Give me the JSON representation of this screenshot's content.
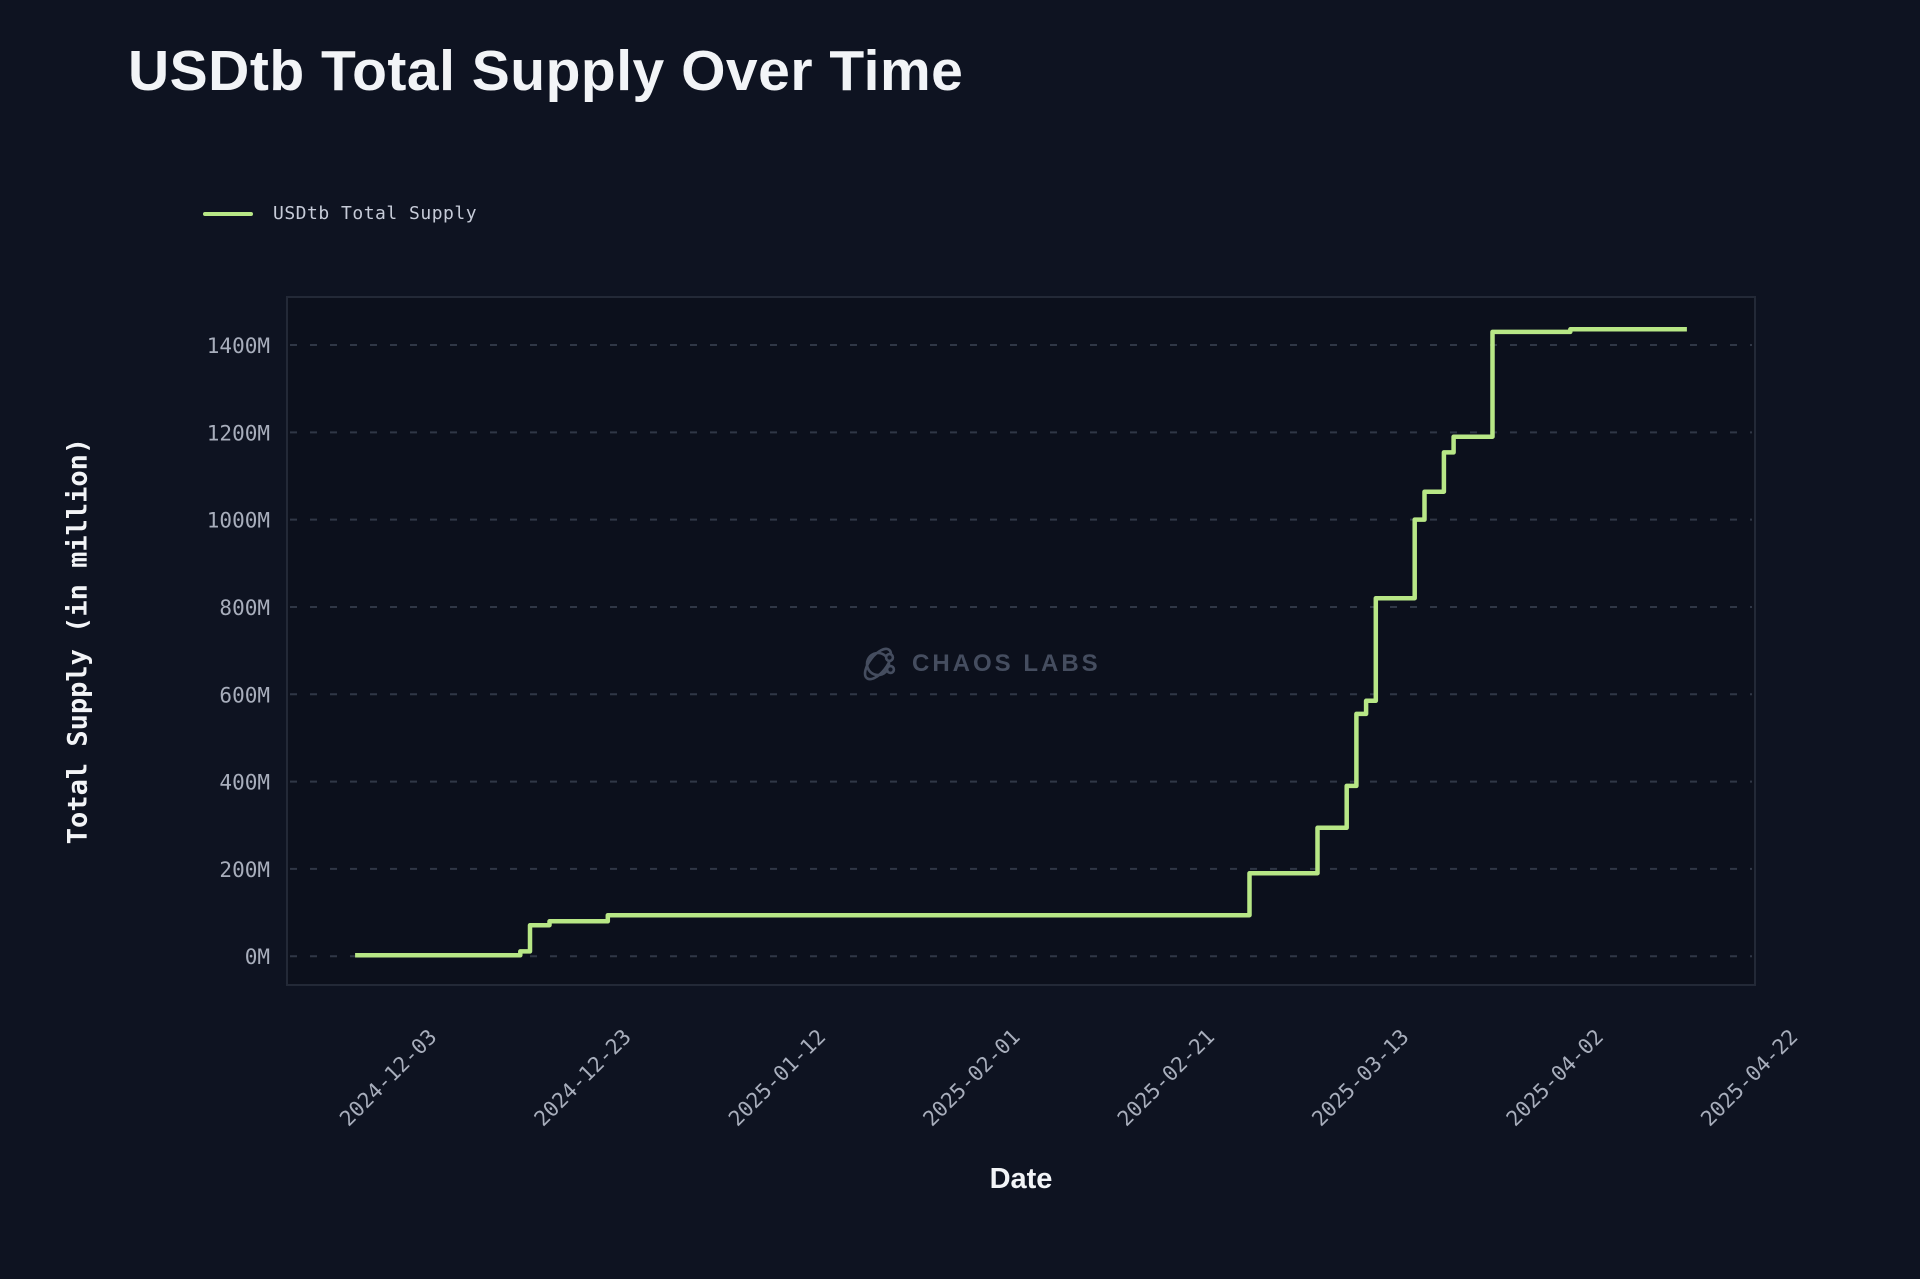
{
  "page": {
    "title": "USDtb Total Supply Over Time"
  },
  "legend": {
    "label": "USDtb Total Supply"
  },
  "watermark": {
    "text": "CHAOS LABS",
    "icon": "chaos-labs-logo-icon"
  },
  "colors": {
    "background": "#0e1321",
    "plot_background": "#0c101c",
    "plot_border": "#232937",
    "line": "#b8e786",
    "grid": "#3d4555",
    "tick_label": "#a8aebc",
    "title": "#f2f4f7",
    "legend_label": "#c6cbd8",
    "watermark": "#454d5f"
  },
  "chart_data": {
    "type": "line",
    "title": "USDtb Total Supply Over Time",
    "xlabel": "Date",
    "ylabel": "Total Supply (in million)",
    "grid": "horizontal-dashed",
    "legend_position": "top-left",
    "step": "after",
    "x_domain": [
      "2024-11-22",
      "2025-04-22"
    ],
    "y_domain": [
      -66,
      1510
    ],
    "x_ticks": [
      "2024-12-03",
      "2024-12-23",
      "2025-01-12",
      "2025-02-01",
      "2025-02-21",
      "2025-03-13",
      "2025-04-02",
      "2025-04-22"
    ],
    "y_ticks": [
      {
        "value": 0,
        "label": "0M"
      },
      {
        "value": 200,
        "label": "200M"
      },
      {
        "value": 400,
        "label": "400M"
      },
      {
        "value": 600,
        "label": "600M"
      },
      {
        "value": 800,
        "label": "800M"
      },
      {
        "value": 1000,
        "label": "1000M"
      },
      {
        "value": 1200,
        "label": "1200M"
      },
      {
        "value": 1400,
        "label": "1400M"
      }
    ],
    "series": [
      {
        "name": "USDtb Total Supply",
        "unit": "M",
        "points": [
          [
            "2024-11-29",
            2
          ],
          [
            "2024-12-16",
            11
          ],
          [
            "2024-12-17",
            71
          ],
          [
            "2024-12-19",
            80
          ],
          [
            "2024-12-25",
            94
          ],
          [
            "2025-03-01",
            190
          ],
          [
            "2025-03-08",
            294
          ],
          [
            "2025-03-11",
            390
          ],
          [
            "2025-03-12",
            555
          ],
          [
            "2025-03-13",
            585
          ],
          [
            "2025-03-14",
            820
          ],
          [
            "2025-03-18",
            1000
          ],
          [
            "2025-03-19",
            1064
          ],
          [
            "2025-03-21",
            1154
          ],
          [
            "2025-03-22",
            1190
          ],
          [
            "2025-03-26",
            1430
          ],
          [
            "2025-04-03",
            1436
          ],
          [
            "2025-04-15",
            1436
          ]
        ]
      }
    ]
  }
}
